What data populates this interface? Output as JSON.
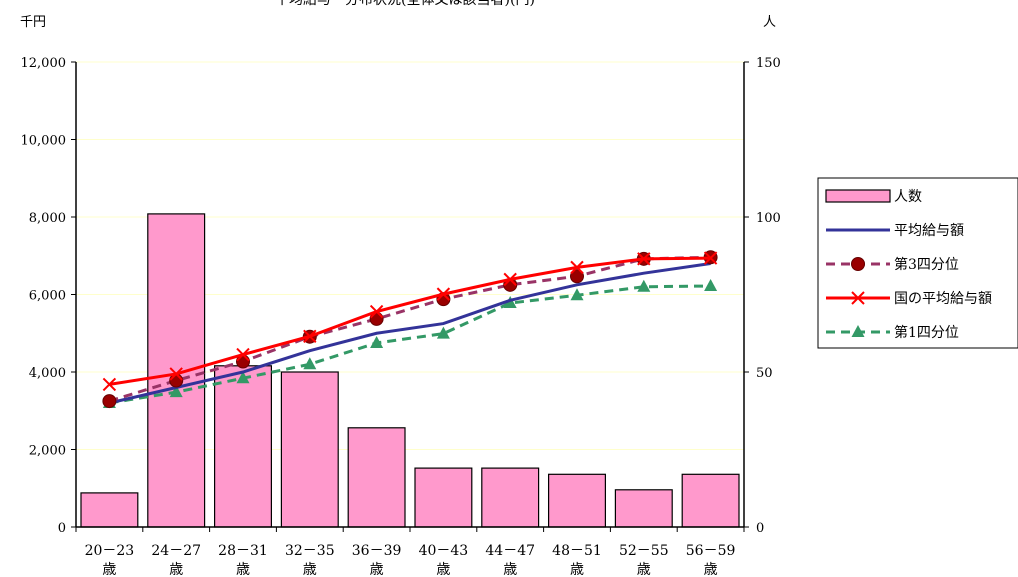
{
  "chart_data": {
    "type": "bar+line",
    "title": "平均給与・分布状況(全体又は該当者)(円)",
    "left_unit": "千円",
    "right_unit": "人",
    "y_left": {
      "min": 0,
      "max": 12000,
      "ticks": [
        "0",
        "2,000",
        "4,000",
        "6,000",
        "8,000",
        "10,000",
        "12,000"
      ]
    },
    "y_right": {
      "min": 0,
      "max": 150,
      "ticks": [
        "0",
        "50",
        "100",
        "150"
      ]
    },
    "categories": [
      [
        "20－23",
        "歳"
      ],
      [
        "24－27",
        "歳"
      ],
      [
        "28－31",
        "歳"
      ],
      [
        "32－35",
        "歳"
      ],
      [
        "36－39",
        "歳"
      ],
      [
        "40－43",
        "歳"
      ],
      [
        "44－47",
        "歳"
      ],
      [
        "48－51",
        "歳"
      ],
      [
        "52－55",
        "歳"
      ],
      [
        "56－59",
        "歳"
      ]
    ],
    "bars": {
      "name": "人数",
      "axis": "right",
      "color": "#ff99cc",
      "values": [
        11,
        101,
        52,
        50,
        32,
        19,
        19,
        17,
        12,
        17
      ]
    },
    "lines": [
      {
        "name": "平均給与額",
        "color": "#333399",
        "style": "solid",
        "marker": "none",
        "values": [
          3200,
          3600,
          4000,
          4550,
          5000,
          5250,
          5850,
          6250,
          6550,
          6800
        ]
      },
      {
        "name": "第3四分位",
        "color": "#993366",
        "style": "dashed",
        "marker": "circle",
        "values": [
          3250,
          3780,
          4270,
          4910,
          5370,
          5880,
          6250,
          6470,
          6920,
          6960
        ]
      },
      {
        "name": "国の平均給与額",
        "color": "#ff0000",
        "style": "solid",
        "marker": "x",
        "values": [
          3680,
          3950,
          4450,
          4920,
          5560,
          6010,
          6390,
          6700,
          6920,
          6940
        ]
      },
      {
        "name": "第1四分位",
        "color": "#339966",
        "style": "dashed",
        "marker": "triangle",
        "values": [
          3200,
          3480,
          3840,
          4200,
          4750,
          4990,
          5780,
          5980,
          6200,
          6220
        ]
      }
    ],
    "grid": true,
    "legend": "right"
  }
}
